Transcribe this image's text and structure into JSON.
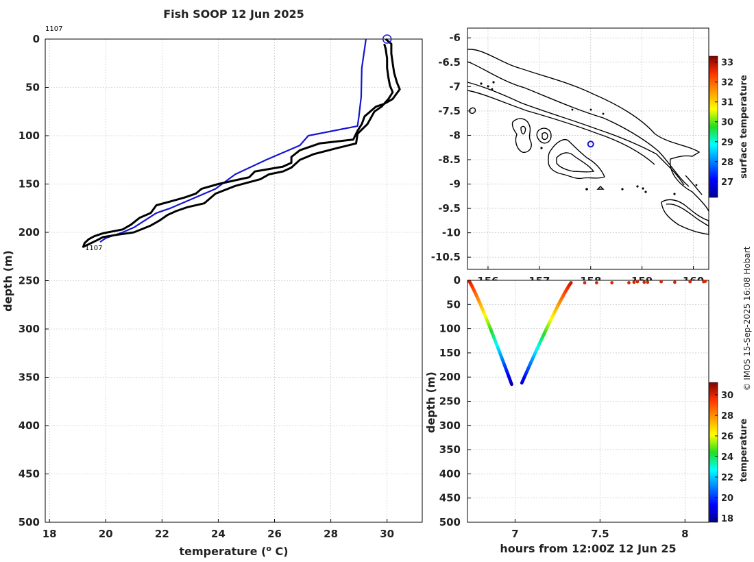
{
  "chart_data": [
    {
      "type": "line",
      "title": "Fish SOOP 12 Jun 2025",
      "xlabel": "temperature (o C)",
      "xlabel_main": "temperature (",
      "xlabel_sup": "o",
      "xlabel_end": " C)",
      "ylabel": "depth (m)",
      "xlim": [
        17.85,
        31.25
      ],
      "ylim": [
        0,
        500
      ],
      "xticks": [
        18,
        20,
        22,
        24,
        26,
        28,
        30
      ],
      "yticks": [
        0,
        50,
        100,
        150,
        200,
        250,
        300,
        350,
        400,
        450,
        500
      ],
      "profile_id_top": "1107",
      "profile_id_bottom": "1107",
      "series": [
        {
          "name": "climatology",
          "color": "#1414d2",
          "points": [
            [
              29.25,
              0
            ],
            [
              29.2,
              10
            ],
            [
              29.1,
              30
            ],
            [
              29.08,
              60
            ],
            [
              29.0,
              80
            ],
            [
              28.95,
              90
            ],
            [
              27.2,
              100
            ],
            [
              26.9,
              110
            ],
            [
              25.7,
              125
            ],
            [
              24.6,
              140
            ],
            [
              23.9,
              155
            ],
            [
              22.3,
              175
            ],
            [
              21.8,
              180
            ],
            [
              21.0,
              195
            ],
            [
              20.6,
              200
            ],
            [
              20.0,
              206
            ],
            [
              19.8,
              210
            ]
          ]
        },
        {
          "name": "profile",
          "color": "#000000",
          "points": [
            [
              29.95,
              0
            ],
            [
              30.15,
              5
            ],
            [
              30.15,
              15
            ],
            [
              30.2,
              25
            ],
            [
              30.25,
              35
            ],
            [
              30.35,
              45
            ],
            [
              30.45,
              52
            ],
            [
              30.2,
              62
            ],
            [
              29.9,
              67
            ],
            [
              29.6,
              70
            ],
            [
              29.4,
              75
            ],
            [
              29.2,
              80
            ],
            [
              29.1,
              88
            ],
            [
              28.95,
              95
            ],
            [
              28.8,
              104
            ],
            [
              27.6,
              108
            ],
            [
              26.9,
              115
            ],
            [
              26.6,
              122
            ],
            [
              26.6,
              128
            ],
            [
              26.3,
              132
            ],
            [
              25.7,
              135
            ],
            [
              25.3,
              137
            ],
            [
              25.1,
              143
            ],
            [
              24.0,
              150
            ],
            [
              23.4,
              155
            ],
            [
              23.2,
              160
            ],
            [
              22.8,
              164
            ],
            [
              22.3,
              168
            ],
            [
              21.8,
              172
            ],
            [
              21.6,
              180
            ],
            [
              21.2,
              185
            ],
            [
              20.9,
              192
            ],
            [
              20.6,
              197
            ],
            [
              19.9,
              201
            ],
            [
              19.6,
              204
            ],
            [
              19.4,
              207
            ],
            [
              19.25,
              211
            ],
            [
              19.2,
              215
            ],
            [
              19.35,
              213
            ],
            [
              19.7,
              208
            ],
            [
              19.9,
              205
            ],
            [
              20.3,
              203
            ],
            [
              21.0,
              200
            ],
            [
              21.6,
              193
            ],
            [
              21.9,
              188
            ],
            [
              22.2,
              182
            ],
            [
              22.5,
              178
            ],
            [
              22.9,
              174
            ],
            [
              23.5,
              170
            ],
            [
              23.9,
              160
            ],
            [
              24.6,
              152
            ],
            [
              25.5,
              145
            ],
            [
              25.8,
              140
            ],
            [
              26.3,
              137
            ],
            [
              26.6,
              133
            ],
            [
              26.9,
              125
            ],
            [
              27.4,
              119
            ],
            [
              28.2,
              113
            ],
            [
              28.9,
              108
            ],
            [
              28.95,
              98
            ],
            [
              29.3,
              88
            ],
            [
              29.55,
              75
            ],
            [
              29.8,
              70
            ],
            [
              30.05,
              62
            ],
            [
              30.2,
              55
            ],
            [
              30.1,
              48
            ],
            [
              30.05,
              40
            ],
            [
              30.0,
              30
            ],
            [
              30.0,
              20
            ],
            [
              29.95,
              10
            ],
            [
              29.9,
              5
            ]
          ]
        }
      ],
      "marker": {
        "x": 30.0,
        "y": 0,
        "shape": "circle",
        "color": "#1414d2"
      }
    },
    {
      "type": "scatter",
      "subtype": "map",
      "xlim": [
        155.6,
        160.3
      ],
      "ylim": [
        -10.75,
        -5.8
      ],
      "xticks": [
        156,
        157,
        158,
        159,
        160
      ],
      "yticks": [
        -6,
        -6.5,
        -7,
        -7.5,
        -8,
        -8.5,
        -9,
        -9.5,
        -10,
        -10.5
      ],
      "yticklabels": [
        "-6",
        "-6.5",
        "-7",
        "-7.5",
        "-8",
        "-8.5",
        "-9",
        "-9.5",
        "-10",
        "-10.5"
      ],
      "location": {
        "lon": 158.0,
        "lat": -8.18
      },
      "colorbar": {
        "label": "surface temperature",
        "range": [
          26.2,
          33.3
        ],
        "ticks": [
          27,
          28,
          29,
          30,
          31,
          32,
          33
        ]
      }
    },
    {
      "type": "scatter",
      "xlabel": "hours from 12:00Z 12 Jun 25",
      "ylabel": "depth (m)",
      "xlim": [
        6.72,
        8.14
      ],
      "ylim": [
        0,
        500
      ],
      "xticks": [
        7,
        7.5,
        8
      ],
      "yticks": [
        0,
        50,
        100,
        150,
        200,
        250,
        300,
        350,
        400,
        450,
        500
      ],
      "descent": {
        "t_start": 6.73,
        "t_end": 6.98,
        "d_start": 2,
        "d_end": 215,
        "temp_start": 30.2,
        "temp_end": 18.2
      },
      "ascent": {
        "t_start": 7.04,
        "t_end": 7.33,
        "d_start": 212,
        "d_end": 5,
        "temp_start": 18.6,
        "temp_end": 30.2
      },
      "surface_points": [
        [
          7.41,
          5
        ],
        [
          7.48,
          5
        ],
        [
          7.57,
          5
        ],
        [
          7.67,
          5
        ],
        [
          7.7,
          4
        ],
        [
          7.72,
          3
        ],
        [
          7.76,
          4
        ],
        [
          7.78,
          4
        ],
        [
          7.86,
          3
        ],
        [
          7.94,
          4
        ],
        [
          8.03,
          3
        ],
        [
          8.11,
          3
        ],
        [
          8.12,
          2
        ]
      ],
      "colorbar": {
        "label": "temperature",
        "range": [
          17.6,
          31.2
        ],
        "ticks": [
          18,
          20,
          22,
          24,
          26,
          28,
          30
        ]
      }
    }
  ],
  "credit": "© IMOS 15-Sep-2025 16:08 Hobart"
}
